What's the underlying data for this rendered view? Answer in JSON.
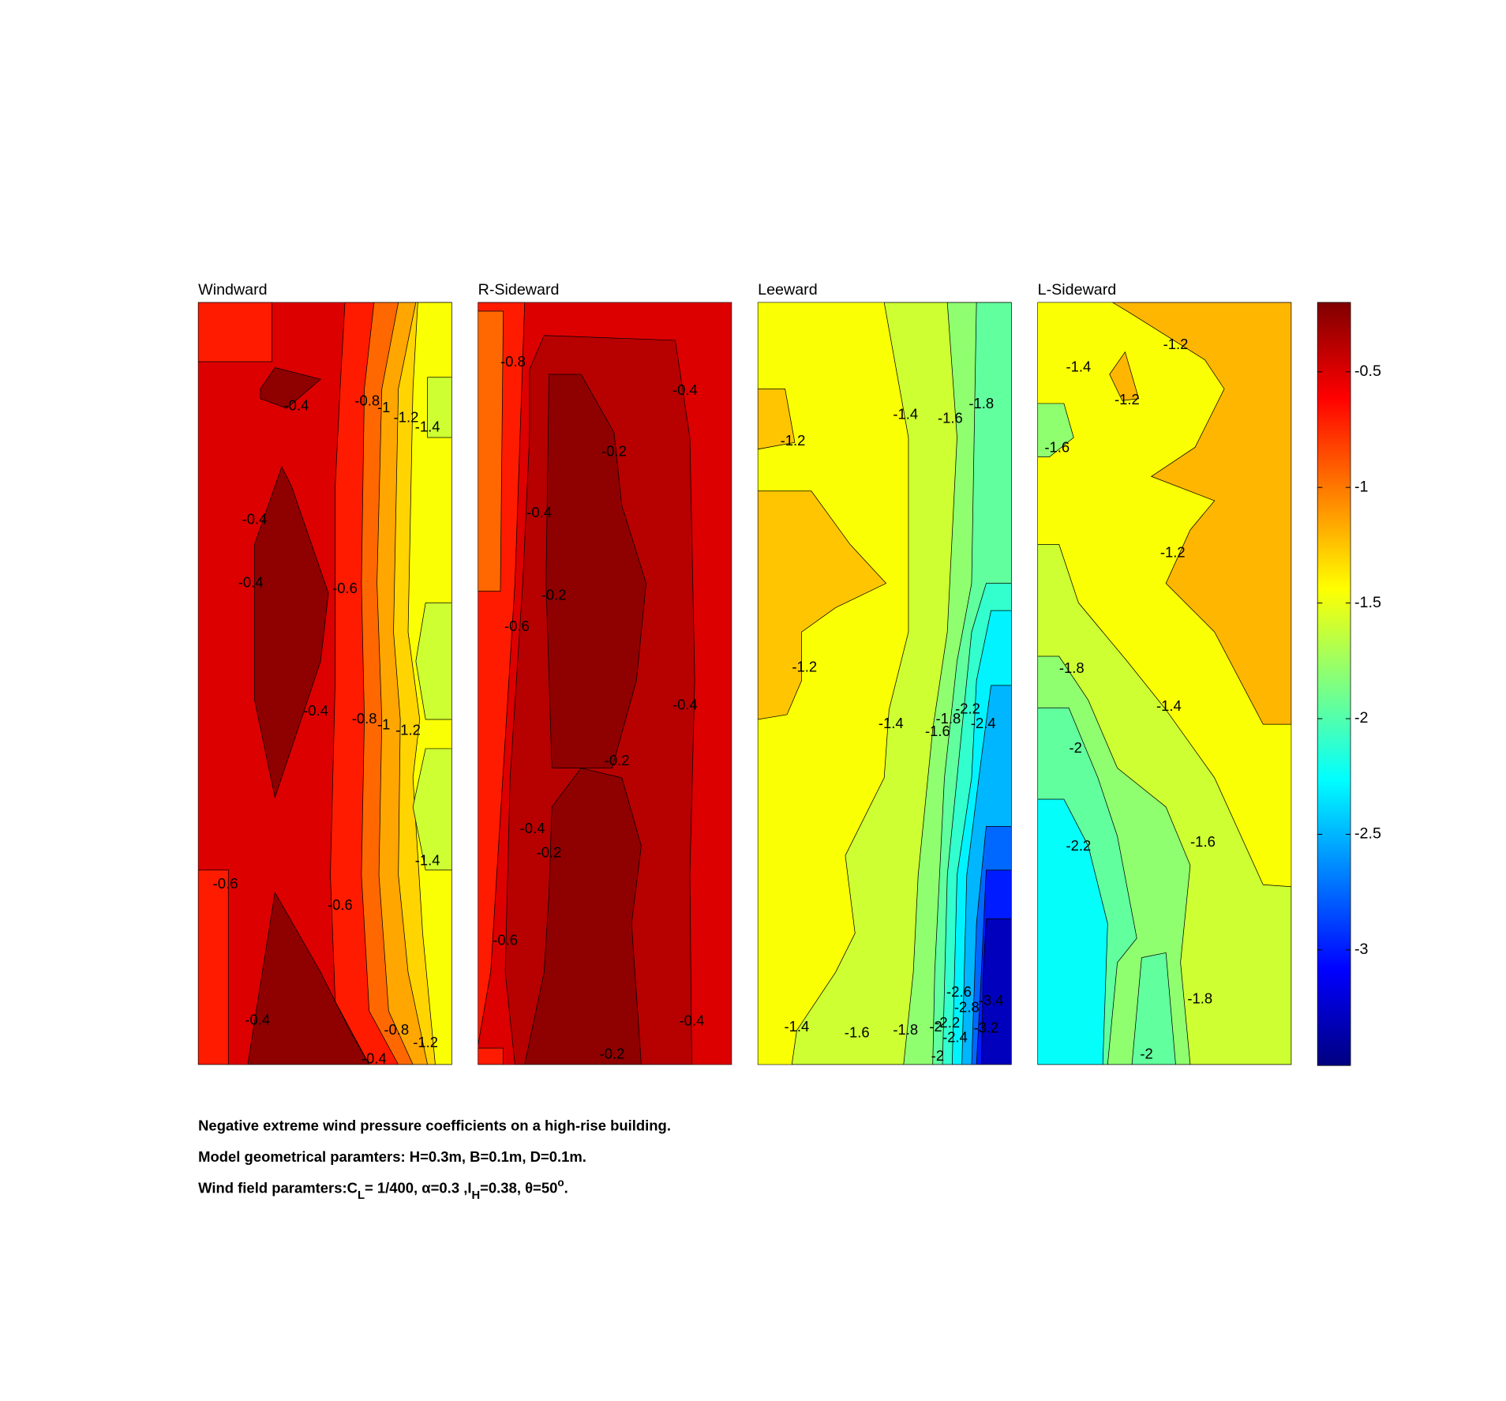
{
  "chart_data": [
    {
      "type": "contour",
      "title": "Windward",
      "levels": [
        -0.5,
        -0.7,
        -0.7,
        -0.25,
        -0.25,
        -0.25,
        -0.7,
        -0.95,
        -1.15,
        -1.3,
        -1.45,
        -1.6,
        -1.6,
        -1.6
      ],
      "labels": [
        -0.4,
        -0.8,
        -1,
        -1.2,
        -1.4,
        -0.4,
        -0.4,
        -0.6,
        -0.4,
        -0.8,
        -1,
        -1.2,
        -1.4,
        -0.6,
        -0.6,
        -0.4,
        -0.8,
        -1.2,
        -0.4
      ]
    },
    {
      "type": "contour",
      "title": "R-Sideward",
      "levels": [
        -0.5,
        -0.7,
        -0.95,
        -0.38,
        -0.25,
        -0.25,
        -0.7
      ],
      "labels": [
        -0.8,
        -0.4,
        -0.2,
        -0.4,
        -0.2,
        -0.6,
        -0.4,
        -0.2,
        -0.4,
        -0.2,
        -0.6,
        -0.4,
        -0.2
      ]
    },
    {
      "type": "contour",
      "title": "Leeward",
      "levels": [
        -1.45,
        -1.25,
        -1.25,
        -1.6,
        -1.8,
        -1.95,
        -2.1,
        -2.3,
        -2.5,
        -2.75,
        -3.0,
        -3.3
      ],
      "labels": [
        -1.4,
        -1.6,
        -1.8,
        -1.2,
        -1.2,
        -1.4,
        -1.6,
        -1.8,
        -2.2,
        -2.4,
        -2.6,
        -2.8,
        -3.4,
        -1.4,
        -1.6,
        -1.8,
        -2,
        -2.2,
        -2.4,
        -3.2,
        -2
      ]
    },
    {
      "type": "contour",
      "title": "L-Sideward",
      "levels": [
        -1.45,
        -1.2,
        -1.2,
        -1.6,
        -1.8,
        -1.8,
        -1.95,
        -2.25,
        -1.95
      ],
      "labels": [
        -1.2,
        -1.4,
        -1.2,
        -1.6,
        -1.2,
        -1.8,
        -1.4,
        -2,
        -2.2,
        -1.6,
        -1.8,
        -2
      ]
    },
    {
      "type": "colorbar",
      "colormap": "jet",
      "ylim": [
        -3.5,
        -0.2
      ],
      "yticks": [
        -0.5,
        -1,
        -1.5,
        -2,
        -2.5,
        -3
      ]
    }
  ],
  "caption": [
    "Negative extreme wind pressure coefficients on a high-rise building.",
    "Model geometrical paramters: H=0.3m, B=0.1m, D=0.1m."
  ],
  "caption_parts": [
    "Wind field paramters:C",
    "L",
    "= 1/400, α=0.3 ,I",
    "H",
    "=0.38, θ=50",
    "o",
    "."
  ]
}
